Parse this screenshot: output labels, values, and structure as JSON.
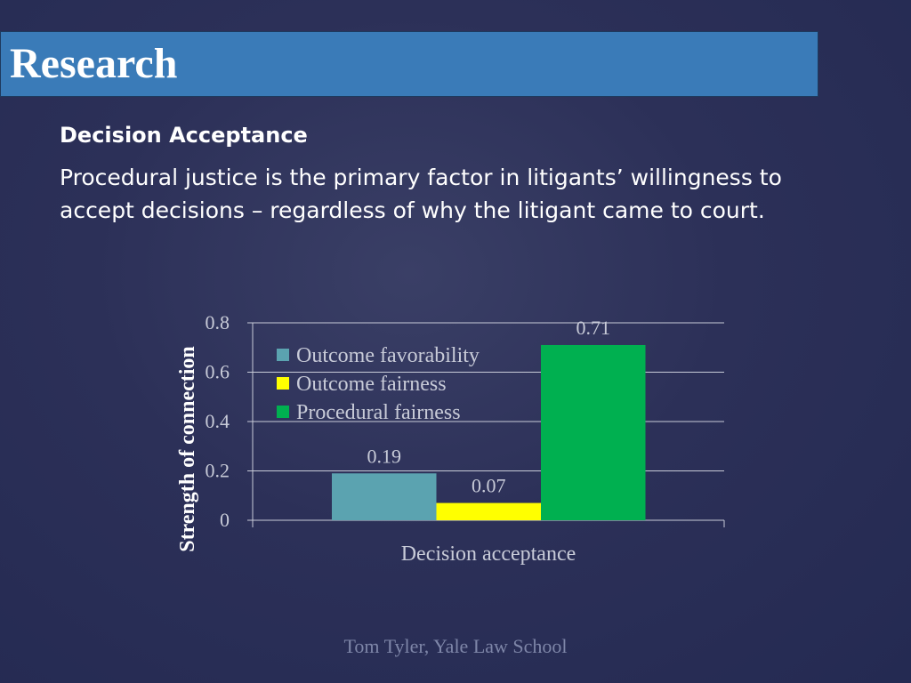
{
  "slide": {
    "title": "Research",
    "subheading": "Decision Acceptance",
    "body": "Procedural justice is the primary factor in litigants’ willingness to accept decisions – regardless of why the litigant came to court.",
    "footer": "Tom Tyler, Yale Law School"
  },
  "colors": {
    "title_bar": "#3a7bb8",
    "background": "#2a2f57",
    "outcome_favorability": "#5ba3b0",
    "outcome_fairness": "#ffff00",
    "procedural_fairness": "#00b050"
  },
  "chart_data": {
    "type": "bar",
    "categories": [
      "Decision acceptance"
    ],
    "series": [
      {
        "name": "Outcome favorability",
        "values": [
          0.19
        ],
        "color": "#5ba3b0"
      },
      {
        "name": "Outcome fairness",
        "values": [
          0.07
        ],
        "color": "#ffff00"
      },
      {
        "name": "Procedural fairness",
        "values": [
          0.71
        ],
        "color": "#00b050"
      }
    ],
    "data_labels": [
      "0.19",
      "0.07",
      "0.71"
    ],
    "ylabel": "Strength of connection",
    "xlabel": "",
    "ylim": [
      0,
      0.8
    ],
    "yticks": [
      0,
      0.2,
      0.4,
      0.6,
      0.8
    ],
    "ytick_labels": [
      "0",
      "0.2",
      "0.4",
      "0.6",
      "0.8"
    ],
    "grid": true,
    "legend_position": "top-left"
  }
}
